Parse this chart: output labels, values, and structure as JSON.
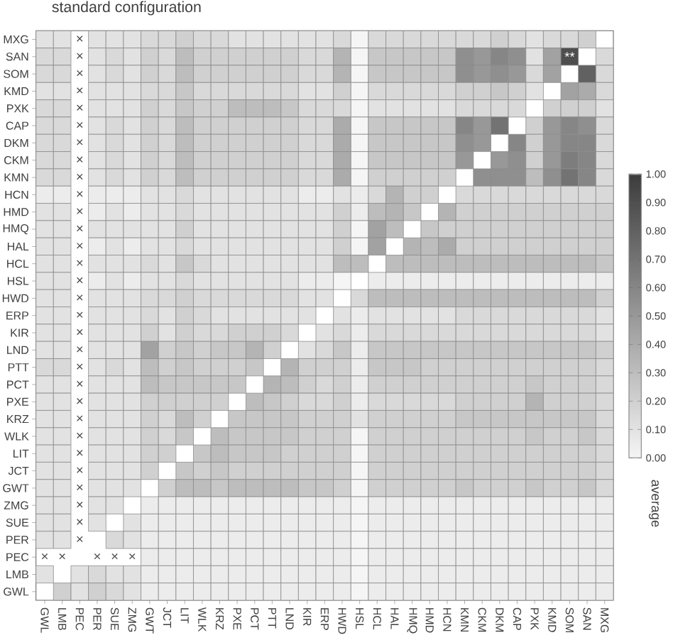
{
  "chart_data": {
    "type": "heatmap",
    "title": "standard configuration",
    "clabel": "average",
    "categories": [
      "GWL",
      "LMB",
      "PEC",
      "PER",
      "SUE",
      "ZMG",
      "GWT",
      "JCT",
      "LIT",
      "WLK",
      "KRZ",
      "PXE",
      "PCT",
      "PTT",
      "LND",
      "KIR",
      "ERP",
      "HWD",
      "HSL",
      "HCL",
      "HAL",
      "HMQ",
      "HMD",
      "HCN",
      "KMN",
      "CKM",
      "DKM",
      "CAP",
      "PXK",
      "KMD",
      "SOM",
      "SAN",
      "MXG"
    ],
    "y_categories": [
      "MXG",
      "SAN",
      "SOM",
      "KMD",
      "PXK",
      "CAP",
      "DKM",
      "CKM",
      "KMN",
      "HCN",
      "HMD",
      "HMQ",
      "HAL",
      "HCL",
      "HSL",
      "HWD",
      "ERP",
      "KIR",
      "LND",
      "PTT",
      "PCT",
      "PXE",
      "KRZ",
      "WLK",
      "LIT",
      "JCT",
      "GWT",
      "ZMG",
      "SUE",
      "PER",
      "PEC",
      "LMB",
      "GWL"
    ],
    "clim": [
      0,
      1
    ],
    "cticks": [
      {
        "value": 0,
        "label": "0.00"
      },
      {
        "value": 0.1,
        "label": "0.10"
      },
      {
        "value": 0.2,
        "label": "0.20"
      },
      {
        "value": 0.3,
        "label": "0.30"
      },
      {
        "value": 0.4,
        "label": "0.40"
      },
      {
        "value": 0.5,
        "label": "0.50"
      },
      {
        "value": 0.6,
        "label": "0.60"
      },
      {
        "value": 0.7,
        "label": "0.70"
      },
      {
        "value": 0.8,
        "label": "0.80"
      },
      {
        "value": 0.9,
        "label": "0.90"
      },
      {
        "value": 1,
        "label": "1.00"
      }
    ],
    "cells": [
      [
        0.1,
        0.1,
        null,
        0.1,
        0.1,
        0.1,
        0.15,
        0.15,
        0.2,
        0.15,
        0.15,
        0.1,
        0.1,
        0.1,
        0.1,
        0.1,
        0.1,
        0.15,
        0.0,
        0.15,
        0.15,
        0.15,
        0.15,
        0.15,
        0.15,
        0.15,
        0.2,
        0.15,
        0.1,
        0.15,
        0.15,
        0.2,
        null
      ],
      [
        0.15,
        0.15,
        null,
        0.1,
        0.15,
        0.1,
        0.2,
        0.15,
        0.3,
        0.2,
        0.2,
        0.2,
        0.2,
        0.2,
        0.2,
        0.15,
        0.15,
        0.35,
        0.0,
        0.25,
        0.25,
        0.25,
        0.25,
        0.25,
        0.55,
        0.5,
        0.6,
        0.55,
        0.1,
        0.45,
        0.9,
        null,
        0.15
      ],
      [
        0.15,
        0.15,
        null,
        0.1,
        0.15,
        0.1,
        0.2,
        0.15,
        0.3,
        0.2,
        0.2,
        0.2,
        0.2,
        0.2,
        0.2,
        0.15,
        0.15,
        0.35,
        0.0,
        0.25,
        0.25,
        0.25,
        0.25,
        0.25,
        0.55,
        0.5,
        0.55,
        0.5,
        0.15,
        0.45,
        null,
        0.8,
        0.15
      ],
      [
        0.1,
        0.1,
        null,
        0.1,
        0.1,
        0.1,
        0.15,
        0.15,
        0.25,
        0.15,
        0.15,
        0.15,
        0.15,
        0.15,
        0.15,
        0.1,
        0.1,
        0.2,
        0.0,
        0.15,
        0.15,
        0.15,
        0.15,
        0.15,
        0.2,
        0.2,
        0.25,
        0.2,
        0.1,
        null,
        0.45,
        0.4,
        0.15
      ],
      [
        0.15,
        0.15,
        null,
        0.1,
        0.1,
        0.1,
        0.2,
        0.15,
        0.25,
        0.2,
        0.2,
        0.3,
        0.3,
        0.3,
        0.25,
        0.15,
        0.15,
        0.15,
        0.0,
        0.1,
        0.1,
        0.1,
        0.1,
        0.1,
        0.15,
        0.15,
        0.15,
        0.15,
        null,
        0.2,
        0.2,
        0.2,
        0.1
      ],
      [
        0.15,
        0.15,
        null,
        0.1,
        0.15,
        0.1,
        0.2,
        0.15,
        0.3,
        0.2,
        0.2,
        0.2,
        0.2,
        0.2,
        0.2,
        0.15,
        0.15,
        0.4,
        0.0,
        0.25,
        0.25,
        0.25,
        0.25,
        0.25,
        0.6,
        0.5,
        0.7,
        null,
        0.2,
        0.5,
        0.6,
        0.55,
        0.15
      ],
      [
        0.15,
        0.15,
        null,
        0.1,
        0.15,
        0.1,
        0.2,
        0.15,
        0.3,
        0.2,
        0.2,
        0.2,
        0.2,
        0.2,
        0.2,
        0.15,
        0.15,
        0.4,
        0.0,
        0.25,
        0.25,
        0.25,
        0.25,
        0.25,
        0.55,
        0.5,
        null,
        0.6,
        0.2,
        0.5,
        0.6,
        0.6,
        0.15
      ],
      [
        0.15,
        0.15,
        null,
        0.1,
        0.15,
        0.1,
        0.2,
        0.15,
        0.3,
        0.2,
        0.2,
        0.2,
        0.2,
        0.2,
        0.2,
        0.15,
        0.15,
        0.4,
        0.0,
        0.25,
        0.25,
        0.25,
        0.25,
        0.25,
        0.5,
        null,
        0.5,
        0.55,
        0.2,
        0.5,
        0.65,
        0.6,
        0.15
      ],
      [
        0.15,
        0.15,
        null,
        0.1,
        0.15,
        0.1,
        0.2,
        0.15,
        0.3,
        0.2,
        0.2,
        0.2,
        0.2,
        0.2,
        0.2,
        0.15,
        0.15,
        0.4,
        0.0,
        0.2,
        0.2,
        0.2,
        0.2,
        0.2,
        null,
        0.55,
        0.55,
        0.55,
        0.3,
        0.55,
        0.7,
        0.6,
        0.15
      ],
      [
        0.05,
        0.05,
        null,
        0.05,
        0.05,
        0.05,
        0.1,
        0.1,
        0.15,
        0.1,
        0.1,
        0.1,
        0.1,
        0.1,
        0.1,
        0.05,
        0.05,
        0.1,
        0.05,
        0.15,
        0.35,
        0.2,
        0.2,
        null,
        0.15,
        0.15,
        0.15,
        0.15,
        0.15,
        0.15,
        0.15,
        0.15,
        0.15
      ],
      [
        0.1,
        0.1,
        null,
        0.05,
        0.1,
        0.05,
        0.1,
        0.1,
        0.15,
        0.1,
        0.1,
        0.1,
        0.1,
        0.1,
        0.1,
        0.1,
        0.1,
        0.2,
        0.05,
        0.3,
        0.35,
        0.25,
        null,
        0.35,
        0.2,
        0.2,
        0.2,
        0.2,
        0.2,
        0.2,
        0.2,
        0.2,
        0.2
      ],
      [
        0.1,
        0.1,
        null,
        0.1,
        0.1,
        0.1,
        0.1,
        0.1,
        0.2,
        0.1,
        0.1,
        0.1,
        0.1,
        0.1,
        0.1,
        0.1,
        0.1,
        0.2,
        0.0,
        0.45,
        0.3,
        null,
        0.25,
        0.2,
        0.2,
        0.2,
        0.2,
        0.2,
        0.2,
        0.2,
        0.2,
        0.2,
        0.2
      ],
      [
        0.1,
        0.1,
        null,
        0.05,
        0.1,
        0.05,
        0.1,
        0.1,
        0.15,
        0.1,
        0.1,
        0.1,
        0.1,
        0.1,
        0.1,
        0.1,
        0.1,
        0.2,
        0.0,
        0.45,
        null,
        0.35,
        0.3,
        0.4,
        0.2,
        0.2,
        0.2,
        0.2,
        0.2,
        0.2,
        0.2,
        0.2,
        0.2
      ],
      [
        0.1,
        0.1,
        null,
        0.1,
        0.1,
        0.1,
        0.15,
        0.1,
        0.25,
        0.15,
        0.1,
        0.1,
        0.1,
        0.1,
        0.1,
        0.1,
        0.1,
        0.3,
        0.3,
        null,
        0.3,
        0.3,
        0.3,
        0.3,
        0.3,
        0.3,
        0.3,
        0.3,
        0.3,
        0.3,
        0.3,
        0.3,
        0.25
      ],
      [
        0.1,
        0.1,
        null,
        0.05,
        0.1,
        0.05,
        0.1,
        0.1,
        0.15,
        0.1,
        0.1,
        0.1,
        0.1,
        0.1,
        0.1,
        0.05,
        0.05,
        0.0,
        null,
        0.05,
        0.05,
        0.05,
        0.05,
        0.05,
        0.05,
        0.05,
        0.05,
        0.05,
        0.05,
        0.05,
        0.05,
        0.05,
        0.05
      ],
      [
        0.1,
        0.1,
        null,
        0.1,
        0.1,
        0.1,
        0.15,
        0.15,
        0.2,
        0.15,
        0.15,
        0.15,
        0.15,
        0.15,
        0.15,
        0.1,
        0.1,
        null,
        0.15,
        0.3,
        0.3,
        0.3,
        0.3,
        0.3,
        0.3,
        0.3,
        0.3,
        0.3,
        0.3,
        0.3,
        0.3,
        0.3,
        0.2
      ],
      [
        0.1,
        0.1,
        null,
        0.1,
        0.1,
        0.1,
        0.15,
        0.1,
        0.2,
        0.15,
        0.1,
        0.1,
        0.1,
        0.1,
        0.1,
        0.1,
        null,
        0.1,
        0.05,
        0.1,
        0.1,
        0.1,
        0.1,
        0.1,
        0.15,
        0.15,
        0.15,
        0.15,
        0.15,
        0.15,
        0.15,
        0.15,
        0.1
      ],
      [
        0.1,
        0.1,
        null,
        0.1,
        0.1,
        0.1,
        0.2,
        0.1,
        0.2,
        0.15,
        0.15,
        0.2,
        0.2,
        0.2,
        0.15,
        null,
        0.1,
        0.15,
        0.05,
        0.15,
        0.15,
        0.15,
        0.15,
        0.15,
        0.15,
        0.15,
        0.15,
        0.15,
        0.15,
        0.15,
        0.15,
        0.15,
        0.1
      ],
      [
        0.1,
        0.1,
        null,
        0.1,
        0.1,
        0.1,
        0.45,
        0.2,
        0.25,
        0.2,
        0.25,
        0.25,
        0.35,
        0.2,
        null,
        0.1,
        0.15,
        0.25,
        0.05,
        0.25,
        0.25,
        0.25,
        0.25,
        0.25,
        0.25,
        0.25,
        0.25,
        0.25,
        0.25,
        0.25,
        0.25,
        0.25,
        0.2
      ],
      [
        0.15,
        0.15,
        null,
        0.1,
        0.15,
        0.1,
        0.3,
        0.2,
        0.25,
        0.2,
        0.2,
        0.2,
        0.25,
        null,
        0.35,
        0.2,
        0.2,
        0.2,
        0.05,
        0.25,
        0.25,
        0.25,
        0.2,
        0.2,
        0.2,
        0.2,
        0.2,
        0.2,
        0.2,
        0.2,
        0.2,
        0.2,
        0.15
      ],
      [
        0.1,
        0.1,
        null,
        0.1,
        0.1,
        0.1,
        0.3,
        0.25,
        0.25,
        0.25,
        0.25,
        0.25,
        null,
        0.35,
        0.3,
        0.2,
        0.15,
        0.2,
        0.05,
        0.2,
        0.2,
        0.2,
        0.2,
        0.2,
        0.2,
        0.2,
        0.2,
        0.2,
        0.25,
        0.2,
        0.2,
        0.2,
        0.15
      ],
      [
        0.1,
        0.1,
        null,
        0.1,
        0.1,
        0.1,
        0.2,
        0.2,
        0.2,
        0.2,
        0.2,
        null,
        0.3,
        0.25,
        0.2,
        0.15,
        0.15,
        0.2,
        0.05,
        0.15,
        0.15,
        0.15,
        0.15,
        0.15,
        0.2,
        0.2,
        0.2,
        0.2,
        0.35,
        0.2,
        0.2,
        0.2,
        0.15
      ],
      [
        0.1,
        0.1,
        null,
        0.1,
        0.1,
        0.1,
        0.2,
        0.15,
        0.3,
        0.2,
        null,
        0.25,
        0.25,
        0.25,
        0.25,
        0.2,
        0.2,
        0.2,
        0.1,
        0.2,
        0.2,
        0.2,
        0.2,
        0.2,
        0.25,
        0.25,
        0.25,
        0.25,
        0.25,
        0.25,
        0.25,
        0.25,
        0.15
      ],
      [
        0.1,
        0.1,
        null,
        0.1,
        0.1,
        0.1,
        0.2,
        0.15,
        0.25,
        null,
        0.3,
        0.25,
        0.25,
        0.25,
        0.25,
        0.2,
        0.2,
        0.2,
        0.0,
        0.2,
        0.2,
        0.2,
        0.2,
        0.2,
        0.2,
        0.2,
        0.2,
        0.2,
        0.25,
        0.2,
        0.2,
        0.25,
        0.15
      ],
      [
        0.1,
        0.1,
        null,
        0.1,
        0.1,
        0.1,
        0.2,
        0.2,
        null,
        0.25,
        0.3,
        0.25,
        0.25,
        0.25,
        0.2,
        0.2,
        0.2,
        0.2,
        0.0,
        0.2,
        0.2,
        0.2,
        0.2,
        0.2,
        0.2,
        0.2,
        0.2,
        0.2,
        0.2,
        0.2,
        0.2,
        0.2,
        0.15
      ],
      [
        0.1,
        0.1,
        null,
        0.1,
        0.1,
        0.1,
        0.2,
        null,
        0.25,
        0.2,
        0.25,
        0.2,
        0.2,
        0.2,
        0.2,
        0.2,
        0.2,
        0.2,
        0.0,
        0.2,
        0.2,
        0.2,
        0.2,
        0.2,
        0.2,
        0.2,
        0.2,
        0.2,
        0.2,
        0.2,
        0.2,
        0.2,
        0.15
      ],
      [
        0.1,
        0.1,
        null,
        0.1,
        0.1,
        0.1,
        null,
        0.2,
        0.3,
        0.3,
        0.25,
        0.3,
        0.3,
        0.3,
        0.3,
        0.25,
        0.25,
        0.2,
        0.0,
        0.2,
        0.2,
        0.2,
        0.2,
        0.2,
        0.25,
        0.2,
        0.2,
        0.2,
        0.25,
        0.2,
        0.2,
        0.25,
        0.15
      ],
      [
        0.1,
        0.1,
        null,
        0.1,
        0.1,
        null,
        0.05,
        0.05,
        0.05,
        0.05,
        0.05,
        0.05,
        0.05,
        0.05,
        0.05,
        0.05,
        0.05,
        0.05,
        0.0,
        0.05,
        0.05,
        0.05,
        0.05,
        0.05,
        0.05,
        0.05,
        0.05,
        0.05,
        0.05,
        0.05,
        0.05,
        0.05,
        0.05
      ],
      [
        0.1,
        0.1,
        null,
        0.1,
        null,
        0.1,
        0.05,
        0.05,
        0.05,
        0.05,
        0.05,
        0.05,
        0.05,
        0.05,
        0.05,
        0.05,
        0.05,
        0.05,
        0.0,
        0.05,
        0.05,
        0.05,
        0.05,
        0.05,
        0.05,
        0.05,
        0.05,
        0.05,
        0.05,
        0.05,
        0.05,
        0.05,
        0.05
      ],
      [
        0.1,
        0.1,
        null,
        null,
        0.15,
        0.1,
        0.05,
        0.05,
        0.05,
        0.05,
        0.05,
        0.05,
        0.05,
        0.05,
        0.05,
        0.05,
        0.05,
        0.05,
        0.0,
        0.05,
        0.05,
        0.05,
        0.05,
        0.05,
        0.05,
        0.05,
        0.05,
        0.05,
        0.05,
        0.05,
        0.05,
        0.05,
        0.05
      ],
      [
        null,
        null,
        null,
        null,
        null,
        null,
        0.05,
        0.05,
        0.05,
        0.05,
        0.05,
        0.05,
        0.05,
        0.05,
        0.05,
        0.05,
        0.05,
        0.05,
        0.0,
        0.05,
        0.05,
        0.05,
        0.05,
        0.05,
        0.05,
        0.05,
        0.05,
        0.05,
        0.05,
        0.05,
        0.05,
        0.05,
        0.05
      ],
      [
        0.1,
        null,
        0.1,
        0.15,
        0.1,
        0.1,
        0.05,
        0.05,
        0.05,
        0.05,
        0.05,
        0.05,
        0.05,
        0.05,
        0.05,
        0.05,
        0.05,
        0.05,
        0.0,
        0.05,
        0.05,
        0.05,
        0.05,
        0.05,
        0.05,
        0.05,
        0.05,
        0.05,
        0.05,
        0.05,
        0.05,
        0.05,
        0.05
      ],
      [
        null,
        0.2,
        0.1,
        0.2,
        0.15,
        0.1,
        0.05,
        0.05,
        0.05,
        0.05,
        0.05,
        0.05,
        0.05,
        0.05,
        0.05,
        0.05,
        0.05,
        0.05,
        0.0,
        0.05,
        0.05,
        0.05,
        0.05,
        0.05,
        0.05,
        0.05,
        0.05,
        0.05,
        0.05,
        0.05,
        0.05,
        0.05,
        0.05
      ]
    ],
    "cell_labels": [
      [
        null,
        null,
        "×",
        null,
        null,
        null,
        null,
        null,
        null,
        null,
        null,
        null,
        null,
        null,
        null,
        null,
        null,
        null,
        null,
        null,
        null,
        null,
        null,
        null,
        null,
        null,
        null,
        null,
        null,
        null,
        null,
        null,
        null
      ],
      [
        null,
        null,
        "×",
        null,
        null,
        null,
        null,
        null,
        null,
        null,
        null,
        null,
        null,
        null,
        null,
        null,
        null,
        null,
        null,
        null,
        null,
        null,
        null,
        null,
        null,
        null,
        null,
        null,
        null,
        null,
        "**",
        null,
        null
      ],
      [
        null,
        null,
        "×",
        null,
        null,
        null,
        null,
        null,
        null,
        null,
        null,
        null,
        null,
        null,
        null,
        null,
        null,
        null,
        null,
        null,
        null,
        null,
        null,
        null,
        null,
        null,
        null,
        null,
        null,
        null,
        null,
        null,
        null
      ],
      [
        null,
        null,
        "×",
        null,
        null,
        null,
        null,
        null,
        null,
        null,
        null,
        null,
        null,
        null,
        null,
        null,
        null,
        null,
        null,
        null,
        null,
        null,
        null,
        null,
        null,
        null,
        null,
        null,
        null,
        null,
        null,
        null,
        null
      ],
      [
        null,
        null,
        "×",
        null,
        null,
        null,
        null,
        null,
        null,
        null,
        null,
        null,
        null,
        null,
        null,
        null,
        null,
        null,
        null,
        null,
        null,
        null,
        null,
        null,
        null,
        null,
        null,
        null,
        null,
        null,
        null,
        null,
        null
      ],
      [
        null,
        null,
        "×",
        null,
        null,
        null,
        null,
        null,
        null,
        null,
        null,
        null,
        null,
        null,
        null,
        null,
        null,
        null,
        null,
        null,
        null,
        null,
        null,
        null,
        null,
        null,
        null,
        null,
        null,
        null,
        null,
        null,
        null
      ],
      [
        null,
        null,
        "×",
        null,
        null,
        null,
        null,
        null,
        null,
        null,
        null,
        null,
        null,
        null,
        null,
        null,
        null,
        null,
        null,
        null,
        null,
        null,
        null,
        null,
        null,
        null,
        null,
        null,
        null,
        null,
        null,
        null,
        null
      ],
      [
        null,
        null,
        "×",
        null,
        null,
        null,
        null,
        null,
        null,
        null,
        null,
        null,
        null,
        null,
        null,
        null,
        null,
        null,
        null,
        null,
        null,
        null,
        null,
        null,
        null,
        null,
        null,
        null,
        null,
        null,
        null,
        null,
        null
      ],
      [
        null,
        null,
        "×",
        null,
        null,
        null,
        null,
        null,
        null,
        null,
        null,
        null,
        null,
        null,
        null,
        null,
        null,
        null,
        null,
        null,
        null,
        null,
        null,
        null,
        null,
        null,
        null,
        null,
        null,
        null,
        null,
        null,
        null
      ],
      [
        null,
        null,
        "×",
        null,
        null,
        null,
        null,
        null,
        null,
        null,
        null,
        null,
        null,
        null,
        null,
        null,
        null,
        null,
        null,
        null,
        null,
        null,
        null,
        null,
        null,
        null,
        null,
        null,
        null,
        null,
        null,
        null,
        null
      ],
      [
        null,
        null,
        "×",
        null,
        null,
        null,
        null,
        null,
        null,
        null,
        null,
        null,
        null,
        null,
        null,
        null,
        null,
        null,
        null,
        null,
        null,
        null,
        null,
        null,
        null,
        null,
        null,
        null,
        null,
        null,
        null,
        null,
        null
      ],
      [
        null,
        null,
        "×",
        null,
        null,
        null,
        null,
        null,
        null,
        null,
        null,
        null,
        null,
        null,
        null,
        null,
        null,
        null,
        null,
        null,
        null,
        null,
        null,
        null,
        null,
        null,
        null,
        null,
        null,
        null,
        null,
        null,
        null
      ],
      [
        null,
        null,
        "×",
        null,
        null,
        null,
        null,
        null,
        null,
        null,
        null,
        null,
        null,
        null,
        null,
        null,
        null,
        null,
        null,
        null,
        null,
        null,
        null,
        null,
        null,
        null,
        null,
        null,
        null,
        null,
        null,
        null,
        null
      ],
      [
        null,
        null,
        "×",
        null,
        null,
        null,
        null,
        null,
        null,
        null,
        null,
        null,
        null,
        null,
        null,
        null,
        null,
        null,
        null,
        null,
        null,
        null,
        null,
        null,
        null,
        null,
        null,
        null,
        null,
        null,
        null,
        null,
        null
      ],
      [
        null,
        null,
        "×",
        null,
        null,
        null,
        null,
        null,
        null,
        null,
        null,
        null,
        null,
        null,
        null,
        null,
        null,
        null,
        null,
        null,
        null,
        null,
        null,
        null,
        null,
        null,
        null,
        null,
        null,
        null,
        null,
        null,
        null
      ],
      [
        null,
        null,
        "×",
        null,
        null,
        null,
        null,
        null,
        null,
        null,
        null,
        null,
        null,
        null,
        null,
        null,
        null,
        null,
        null,
        null,
        null,
        null,
        null,
        null,
        null,
        null,
        null,
        null,
        null,
        null,
        null,
        null,
        null
      ],
      [
        null,
        null,
        "×",
        null,
        null,
        null,
        null,
        null,
        null,
        null,
        null,
        null,
        null,
        null,
        null,
        null,
        null,
        null,
        null,
        null,
        null,
        null,
        null,
        null,
        null,
        null,
        null,
        null,
        null,
        null,
        null,
        null,
        null
      ],
      [
        null,
        null,
        "×",
        null,
        null,
        null,
        null,
        null,
        null,
        null,
        null,
        null,
        null,
        null,
        null,
        null,
        null,
        null,
        null,
        null,
        null,
        null,
        null,
        null,
        null,
        null,
        null,
        null,
        null,
        null,
        null,
        null,
        null
      ],
      [
        null,
        null,
        "×",
        null,
        null,
        null,
        null,
        null,
        null,
        null,
        null,
        null,
        null,
        null,
        null,
        null,
        null,
        null,
        null,
        null,
        null,
        null,
        null,
        null,
        null,
        null,
        null,
        null,
        null,
        null,
        null,
        null,
        null
      ],
      [
        null,
        null,
        "×",
        null,
        null,
        null,
        null,
        null,
        null,
        null,
        null,
        null,
        null,
        null,
        null,
        null,
        null,
        null,
        null,
        null,
        null,
        null,
        null,
        null,
        null,
        null,
        null,
        null,
        null,
        null,
        null,
        null,
        null
      ],
      [
        null,
        null,
        "×",
        null,
        null,
        null,
        null,
        null,
        null,
        null,
        null,
        null,
        null,
        null,
        null,
        null,
        null,
        null,
        null,
        null,
        null,
        null,
        null,
        null,
        null,
        null,
        null,
        null,
        null,
        null,
        null,
        null,
        null
      ],
      [
        null,
        null,
        "×",
        null,
        null,
        null,
        null,
        null,
        null,
        null,
        null,
        null,
        null,
        null,
        null,
        null,
        null,
        null,
        null,
        null,
        null,
        null,
        null,
        null,
        null,
        null,
        null,
        null,
        null,
        null,
        null,
        null,
        null
      ],
      [
        null,
        null,
        "×",
        null,
        null,
        null,
        null,
        null,
        null,
        null,
        null,
        null,
        null,
        null,
        null,
        null,
        null,
        null,
        null,
        null,
        null,
        null,
        null,
        null,
        null,
        null,
        null,
        null,
        null,
        null,
        null,
        null,
        null
      ],
      [
        null,
        null,
        "×",
        null,
        null,
        null,
        null,
        null,
        null,
        null,
        null,
        null,
        null,
        null,
        null,
        null,
        null,
        null,
        null,
        null,
        null,
        null,
        null,
        null,
        null,
        null,
        null,
        null,
        null,
        null,
        null,
        null,
        null
      ],
      [
        null,
        null,
        "×",
        null,
        null,
        null,
        null,
        null,
        null,
        null,
        null,
        null,
        null,
        null,
        null,
        null,
        null,
        null,
        null,
        null,
        null,
        null,
        null,
        null,
        null,
        null,
        null,
        null,
        null,
        null,
        null,
        null,
        null
      ],
      [
        null,
        null,
        "×",
        null,
        null,
        null,
        null,
        null,
        null,
        null,
        null,
        null,
        null,
        null,
        null,
        null,
        null,
        null,
        null,
        null,
        null,
        null,
        null,
        null,
        null,
        null,
        null,
        null,
        null,
        null,
        null,
        null,
        null
      ],
      [
        null,
        null,
        "×",
        null,
        null,
        null,
        null,
        null,
        null,
        null,
        null,
        null,
        null,
        null,
        null,
        null,
        null,
        null,
        null,
        null,
        null,
        null,
        null,
        null,
        null,
        null,
        null,
        null,
        null,
        null,
        null,
        null,
        null
      ],
      [
        null,
        null,
        "×",
        null,
        null,
        null,
        null,
        null,
        null,
        null,
        null,
        null,
        null,
        null,
        null,
        null,
        null,
        null,
        null,
        null,
        null,
        null,
        null,
        null,
        null,
        null,
        null,
        null,
        null,
        null,
        null,
        null,
        null
      ],
      [
        null,
        null,
        "×",
        null,
        null,
        null,
        null,
        null,
        null,
        null,
        null,
        null,
        null,
        null,
        null,
        null,
        null,
        null,
        null,
        null,
        null,
        null,
        null,
        null,
        null,
        null,
        null,
        null,
        null,
        null,
        null,
        null,
        null
      ],
      [
        null,
        null,
        "×",
        null,
        null,
        null,
        null,
        null,
        null,
        null,
        null,
        null,
        null,
        null,
        null,
        null,
        null,
        null,
        null,
        null,
        null,
        null,
        null,
        null,
        null,
        null,
        null,
        null,
        null,
        null,
        null,
        null,
        null
      ],
      [
        "×",
        "×",
        null,
        "×",
        "×",
        "×",
        null,
        null,
        null,
        null,
        null,
        null,
        null,
        null,
        null,
        null,
        null,
        null,
        null,
        null,
        null,
        null,
        null,
        null,
        null,
        null,
        null,
        null,
        null,
        null,
        null,
        null,
        null
      ],
      [
        null,
        null,
        null,
        null,
        null,
        null,
        null,
        null,
        null,
        null,
        null,
        null,
        null,
        null,
        null,
        null,
        null,
        null,
        null,
        null,
        null,
        null,
        null,
        null,
        null,
        null,
        null,
        null,
        null,
        null,
        null,
        null,
        null
      ],
      [
        null,
        null,
        null,
        null,
        null,
        null,
        null,
        null,
        null,
        null,
        null,
        null,
        null,
        null,
        null,
        null,
        null,
        null,
        null,
        null,
        null,
        null,
        null,
        null,
        null,
        null,
        null,
        null,
        null,
        null,
        null,
        null,
        null
      ]
    ]
  }
}
